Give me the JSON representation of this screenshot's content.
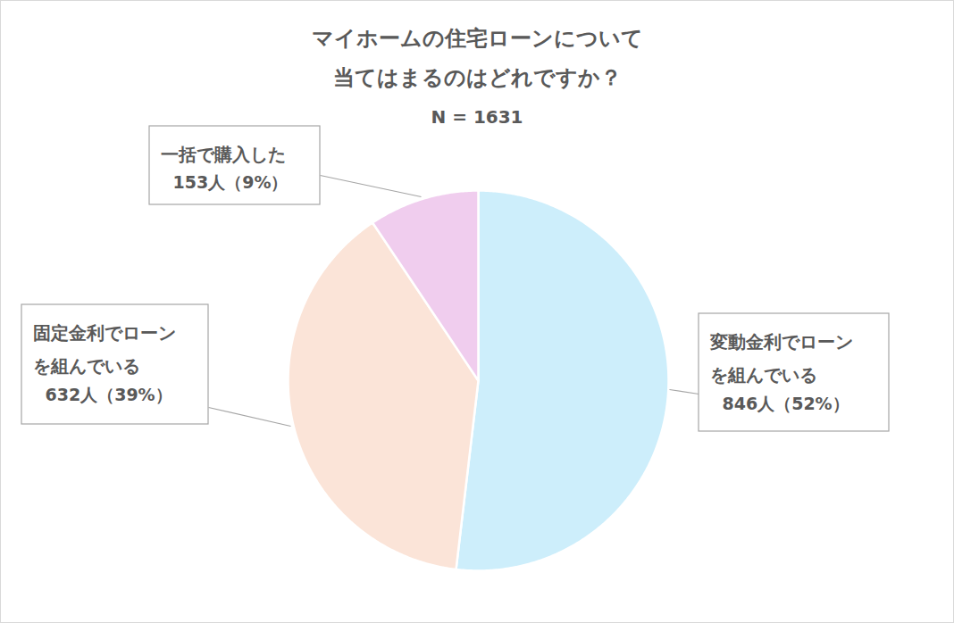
{
  "chart_data": {
    "type": "pie",
    "title": "マイホームの住宅ローンについて\n当てはまるのはどれですか？",
    "subtitle": "N = 1631",
    "categories": [
      "変動金利でローン\nを組んでいる",
      "固定金利でローン\nを組んでいる",
      "一括で購入した"
    ],
    "values": [
      846,
      632,
      153
    ],
    "value_labels": [
      "846人（52%）",
      "632人（39%）",
      "153人（9%）"
    ],
    "colors": [
      "#cdeefb",
      "#fbe4d8",
      "#f0cdee"
    ],
    "data_labels": true
  }
}
